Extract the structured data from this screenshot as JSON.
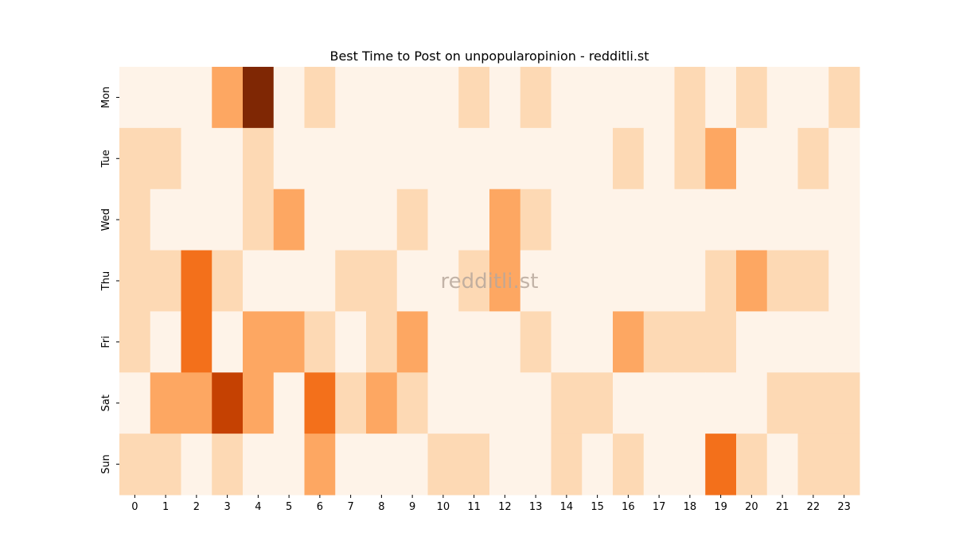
{
  "chart_data": {
    "type": "heatmap",
    "title": "Best Time to Post on unpopularopinion - redditli.st",
    "xlabel": "",
    "ylabel": "",
    "x_categories": [
      "0",
      "1",
      "2",
      "3",
      "4",
      "5",
      "6",
      "7",
      "8",
      "9",
      "10",
      "11",
      "12",
      "13",
      "14",
      "15",
      "16",
      "17",
      "18",
      "19",
      "20",
      "21",
      "22",
      "23"
    ],
    "y_categories": [
      "Mon",
      "Tue",
      "Wed",
      "Thu",
      "Fri",
      "Sat",
      "Sun"
    ],
    "value_scale": [
      0,
      5
    ],
    "colormap": [
      "#fef3e8",
      "#fdd9b4",
      "#fda762",
      "#f3701b",
      "#c54102",
      "#7f2704"
    ],
    "values": [
      [
        0,
        0,
        0,
        2,
        5,
        0,
        1,
        0,
        0,
        0,
        0,
        1,
        0,
        1,
        0,
        0,
        0,
        0,
        1,
        0,
        1,
        0,
        0,
        1
      ],
      [
        1,
        1,
        0,
        0,
        1,
        0,
        0,
        0,
        0,
        0,
        0,
        0,
        0,
        0,
        0,
        0,
        1,
        0,
        1,
        2,
        0,
        0,
        1,
        0
      ],
      [
        1,
        0,
        0,
        0,
        1,
        2,
        0,
        0,
        0,
        1,
        0,
        0,
        2,
        1,
        0,
        0,
        0,
        0,
        0,
        0,
        0,
        0,
        0,
        0
      ],
      [
        1,
        1,
        3,
        1,
        0,
        0,
        0,
        1,
        1,
        0,
        0,
        1,
        2,
        0,
        0,
        0,
        0,
        0,
        0,
        1,
        2,
        1,
        1,
        0
      ],
      [
        1,
        0,
        3,
        0,
        2,
        2,
        1,
        0,
        1,
        2,
        0,
        0,
        0,
        1,
        0,
        0,
        2,
        1,
        1,
        1,
        0,
        0,
        0,
        0
      ],
      [
        0,
        2,
        2,
        4,
        2,
        0,
        3,
        1,
        2,
        1,
        0,
        0,
        0,
        0,
        1,
        1,
        0,
        0,
        0,
        0,
        0,
        1,
        1,
        1
      ],
      [
        1,
        1,
        0,
        1,
        0,
        0,
        2,
        0,
        0,
        0,
        1,
        1,
        0,
        0,
        1,
        0,
        1,
        0,
        0,
        3,
        1,
        0,
        1,
        1
      ]
    ],
    "watermark": "redditli.st",
    "legend": "none"
  }
}
